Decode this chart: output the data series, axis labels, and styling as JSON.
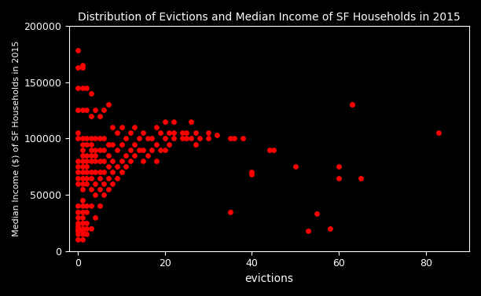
{
  "title": "Distribution of Evictions and Median Income of SF Households in 2015",
  "xlabel": "evictions",
  "ylabel": "Median Income ($) of SF Households in 2015",
  "background_color": "#000000",
  "dot_color": "#ff0000",
  "xlim": [
    -2,
    90
  ],
  "ylim": [
    0,
    200000
  ],
  "figsize": [
    6.12,
    3.77
  ],
  "dpi": 100,
  "xticks": [
    0,
    20,
    40,
    60,
    80
  ],
  "yticks": [
    0,
    50000,
    100000,
    150000,
    200000
  ],
  "points": [
    [
      0,
      10000
    ],
    [
      0,
      15000
    ],
    [
      0,
      18000
    ],
    [
      0,
      20000
    ],
    [
      0,
      22000
    ],
    [
      0,
      25000
    ],
    [
      0,
      30000
    ],
    [
      0,
      35000
    ],
    [
      0,
      40000
    ],
    [
      0,
      60000
    ],
    [
      0,
      65000
    ],
    [
      0,
      70000
    ],
    [
      0,
      75000
    ],
    [
      0,
      80000
    ],
    [
      0,
      100000
    ],
    [
      0,
      105000
    ],
    [
      0,
      125000
    ],
    [
      0,
      145000
    ],
    [
      0,
      163000
    ],
    [
      0,
      178000
    ],
    [
      1,
      10000
    ],
    [
      1,
      15000
    ],
    [
      1,
      18000
    ],
    [
      1,
      20000
    ],
    [
      1,
      25000
    ],
    [
      1,
      30000
    ],
    [
      1,
      35000
    ],
    [
      1,
      40000
    ],
    [
      1,
      45000
    ],
    [
      1,
      55000
    ],
    [
      1,
      60000
    ],
    [
      1,
      65000
    ],
    [
      1,
      70000
    ],
    [
      1,
      75000
    ],
    [
      1,
      80000
    ],
    [
      1,
      85000
    ],
    [
      1,
      90000
    ],
    [
      1,
      95000
    ],
    [
      1,
      100000
    ],
    [
      1,
      125000
    ],
    [
      1,
      145000
    ],
    [
      1,
      163000
    ],
    [
      1,
      165000
    ],
    [
      2,
      15000
    ],
    [
      2,
      20000
    ],
    [
      2,
      25000
    ],
    [
      2,
      35000
    ],
    [
      2,
      40000
    ],
    [
      2,
      60000
    ],
    [
      2,
      65000
    ],
    [
      2,
      70000
    ],
    [
      2,
      75000
    ],
    [
      2,
      80000
    ],
    [
      2,
      85000
    ],
    [
      2,
      95000
    ],
    [
      2,
      100000
    ],
    [
      2,
      125000
    ],
    [
      2,
      145000
    ],
    [
      3,
      20000
    ],
    [
      3,
      40000
    ],
    [
      3,
      55000
    ],
    [
      3,
      65000
    ],
    [
      3,
      70000
    ],
    [
      3,
      80000
    ],
    [
      3,
      85000
    ],
    [
      3,
      90000
    ],
    [
      3,
      95000
    ],
    [
      3,
      100000
    ],
    [
      3,
      120000
    ],
    [
      3,
      140000
    ],
    [
      4,
      30000
    ],
    [
      4,
      50000
    ],
    [
      4,
      60000
    ],
    [
      4,
      70000
    ],
    [
      4,
      80000
    ],
    [
      4,
      85000
    ],
    [
      4,
      90000
    ],
    [
      4,
      100000
    ],
    [
      4,
      125000
    ],
    [
      5,
      40000
    ],
    [
      5,
      55000
    ],
    [
      5,
      65000
    ],
    [
      5,
      70000
    ],
    [
      5,
      80000
    ],
    [
      5,
      90000
    ],
    [
      5,
      100000
    ],
    [
      5,
      120000
    ],
    [
      6,
      50000
    ],
    [
      6,
      60000
    ],
    [
      6,
      70000
    ],
    [
      6,
      80000
    ],
    [
      6,
      90000
    ],
    [
      6,
      100000
    ],
    [
      6,
      125000
    ],
    [
      7,
      55000
    ],
    [
      7,
      65000
    ],
    [
      7,
      75000
    ],
    [
      7,
      85000
    ],
    [
      7,
      95000
    ],
    [
      7,
      130000
    ],
    [
      8,
      60000
    ],
    [
      8,
      70000
    ],
    [
      8,
      80000
    ],
    [
      8,
      95000
    ],
    [
      8,
      110000
    ],
    [
      9,
      65000
    ],
    [
      9,
      75000
    ],
    [
      9,
      90000
    ],
    [
      9,
      105000
    ],
    [
      10,
      70000
    ],
    [
      10,
      80000
    ],
    [
      10,
      95000
    ],
    [
      10,
      110000
    ],
    [
      11,
      75000
    ],
    [
      11,
      85000
    ],
    [
      11,
      100000
    ],
    [
      12,
      80000
    ],
    [
      12,
      90000
    ],
    [
      12,
      105000
    ],
    [
      13,
      85000
    ],
    [
      13,
      95000
    ],
    [
      13,
      110000
    ],
    [
      14,
      90000
    ],
    [
      14,
      100000
    ],
    [
      15,
      80000
    ],
    [
      15,
      90000
    ],
    [
      15,
      105000
    ],
    [
      16,
      85000
    ],
    [
      16,
      100000
    ],
    [
      17,
      90000
    ],
    [
      17,
      100000
    ],
    [
      18,
      80000
    ],
    [
      18,
      95000
    ],
    [
      18,
      110000
    ],
    [
      19,
      90000
    ],
    [
      19,
      105000
    ],
    [
      20,
      90000
    ],
    [
      20,
      100000
    ],
    [
      20,
      115000
    ],
    [
      21,
      95000
    ],
    [
      21,
      105000
    ],
    [
      22,
      100000
    ],
    [
      22,
      105000
    ],
    [
      22,
      115000
    ],
    [
      24,
      100000
    ],
    [
      24,
      105000
    ],
    [
      25,
      100000
    ],
    [
      25,
      105000
    ],
    [
      26,
      100000
    ],
    [
      26,
      115000
    ],
    [
      27,
      95000
    ],
    [
      27,
      105000
    ],
    [
      28,
      100000
    ],
    [
      30,
      100000
    ],
    [
      30,
      105000
    ],
    [
      32,
      103000
    ],
    [
      35,
      35000
    ],
    [
      35,
      100000
    ],
    [
      36,
      100000
    ],
    [
      38,
      100000
    ],
    [
      40,
      68000
    ],
    [
      40,
      70000
    ],
    [
      44,
      90000
    ],
    [
      45,
      90000
    ],
    [
      50,
      75000
    ],
    [
      53,
      18000
    ],
    [
      55,
      33000
    ],
    [
      58,
      20000
    ],
    [
      60,
      75000
    ],
    [
      60,
      65000
    ],
    [
      63,
      130000
    ],
    [
      63,
      130000
    ],
    [
      65,
      65000
    ],
    [
      83,
      105000
    ]
  ]
}
